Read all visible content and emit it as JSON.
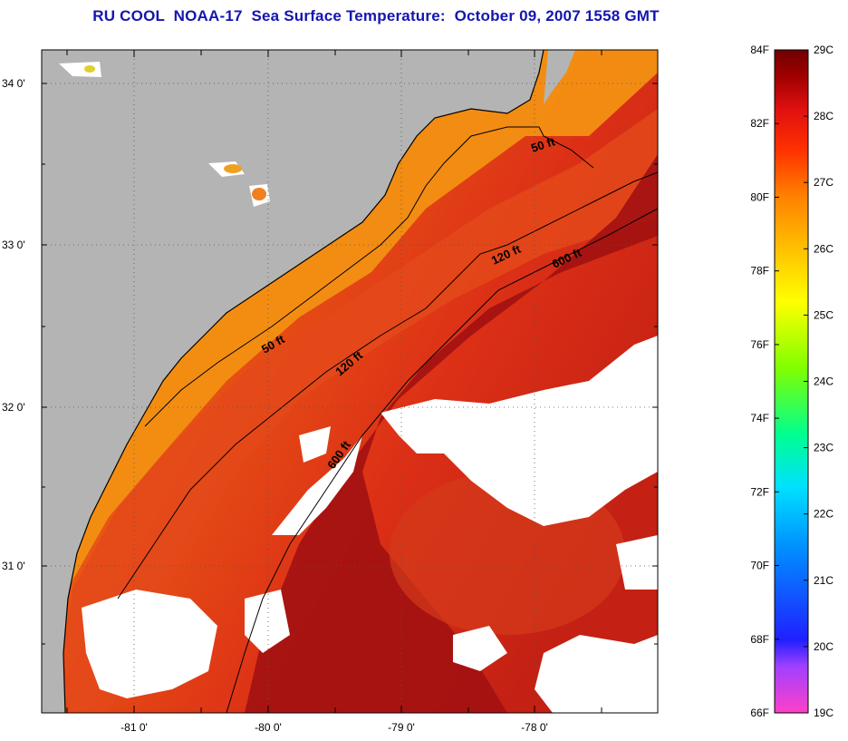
{
  "title": "RU COOL  NOAA-17  Sea Surface Temperature:  October 09, 2007 1558 GMT",
  "map": {
    "latitude_ticks": [
      "34 0'",
      "33 0'",
      "32 0'",
      "31 0'"
    ],
    "longitude_ticks": [
      "-81 0'",
      "-80 0'",
      "-79 0'",
      "-78 0'"
    ],
    "contour_labels": [
      "50 ft",
      "120 ft",
      "600 ft",
      "50 ft",
      "120 ft",
      "600 ft"
    ],
    "colors": {
      "land": "#b4b4b4",
      "cloud": "#ffffff",
      "coastal_orange": "#f08a10",
      "warm_red": "#e8401a",
      "gulf_stream": "#a01010",
      "contour": "#000000"
    }
  },
  "colorbar": {
    "fahrenheit_labels": [
      "84F",
      "82F",
      "80F",
      "78F",
      "76F",
      "74F",
      "72F",
      "70F",
      "68F",
      "66F"
    ],
    "celsius_labels": [
      "29C",
      "28C",
      "27C",
      "26C",
      "25C",
      "24C",
      "23C",
      "22C",
      "21C",
      "20C",
      "19C"
    ],
    "gradient_stops": [
      "#ff40c8",
      "#a040ff",
      "#2020ff",
      "#0090ff",
      "#00e0ff",
      "#00ff90",
      "#80ff00",
      "#ffff00",
      "#ffc000",
      "#ff8000",
      "#ff3000",
      "#e01010",
      "#a00000",
      "#700000"
    ]
  }
}
